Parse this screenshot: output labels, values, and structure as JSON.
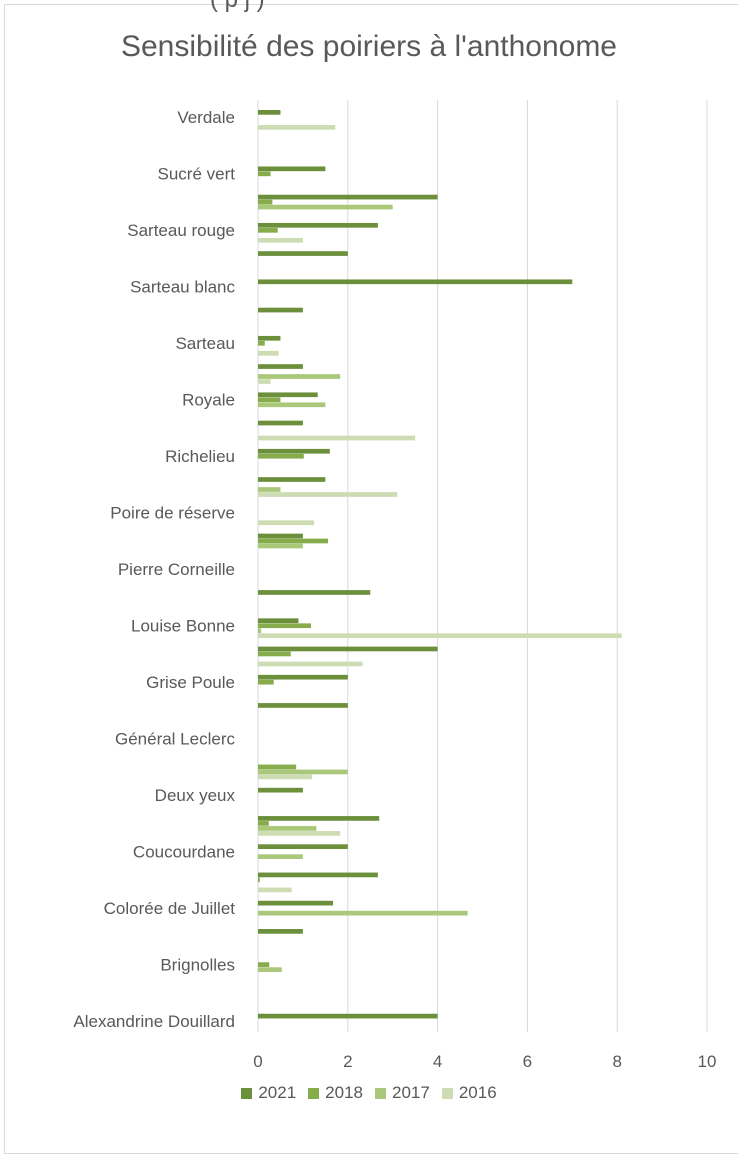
{
  "chart_data": {
    "type": "bar",
    "orientation": "horizontal",
    "title": "Sensibilité des poiriers à l'anthonome",
    "xlabel": "",
    "ylabel": "",
    "xlim": [
      0,
      10
    ],
    "x_ticks": [
      "0",
      "2",
      "4",
      "6",
      "8",
      "10"
    ],
    "grid": true,
    "legend_position": "bottom",
    "visible_category_labels": [
      "Verdale",
      "Sucré vert",
      "Sarteau rouge",
      "Sarteau blanc",
      "Sarteau",
      "Royale",
      "Richelieu",
      "Poire de réserve",
      "Pierre  Corneille",
      "Louise Bonne",
      "Grise Poule",
      "Général Leclerc",
      "Deux yeux",
      "Coucourdane",
      "Colorée de Juillet",
      "Brignolles",
      "Alexandrine Douillard"
    ],
    "series_names": [
      "2021",
      "2018",
      "2017",
      "2016"
    ],
    "series_colors": [
      "#6b8f3a",
      "#86ac4c",
      "#a9c87a",
      "#cddcb3"
    ],
    "rows": [
      {
        "label": "Verdale",
        "values": [
          0.5,
          null,
          null,
          1.72
        ]
      },
      {
        "label": "",
        "values": [
          null,
          null,
          null,
          null
        ]
      },
      {
        "label": "Sucré vert",
        "values": [
          1.5,
          0.28,
          null,
          null
        ]
      },
      {
        "label": "",
        "values": [
          4.0,
          0.32,
          3.0,
          null
        ]
      },
      {
        "label": "Sarteau rouge",
        "values": [
          2.67,
          0.44,
          null,
          1.0
        ]
      },
      {
        "label": "",
        "values": [
          2.0,
          null,
          null,
          null
        ]
      },
      {
        "label": "Sarteau blanc",
        "values": [
          7.0,
          null,
          null,
          null
        ]
      },
      {
        "label": "",
        "values": [
          1.0,
          null,
          null,
          null
        ]
      },
      {
        "label": "Sarteau",
        "values": [
          0.5,
          0.15,
          null,
          0.46
        ]
      },
      {
        "label": "",
        "values": [
          1.0,
          null,
          1.83,
          0.28
        ]
      },
      {
        "label": "Royale",
        "values": [
          1.33,
          0.5,
          1.5,
          null
        ]
      },
      {
        "label": "",
        "values": [
          1.0,
          null,
          null,
          3.5
        ]
      },
      {
        "label": "Richelieu",
        "values": [
          1.6,
          1.02,
          null,
          null
        ]
      },
      {
        "label": "",
        "values": [
          1.5,
          null,
          0.5,
          3.1
        ]
      },
      {
        "label": "Poire de réserve",
        "values": [
          null,
          null,
          null,
          1.25
        ]
      },
      {
        "label": "",
        "values": [
          1.0,
          1.56,
          1.0,
          null
        ]
      },
      {
        "label": "Pierre  Corneille",
        "values": [
          null,
          null,
          null,
          null
        ]
      },
      {
        "label": "",
        "values": [
          2.5,
          null,
          null,
          null
        ]
      },
      {
        "label": "Louise Bonne",
        "values": [
          0.9,
          1.18,
          0.07,
          8.1
        ]
      },
      {
        "label": "",
        "values": [
          4.0,
          0.73,
          null,
          2.33
        ]
      },
      {
        "label": "Grise Poule",
        "values": [
          2.0,
          0.35,
          null,
          null
        ]
      },
      {
        "label": "",
        "values": [
          2.0,
          null,
          null,
          null
        ]
      },
      {
        "label": "Général Leclerc",
        "values": [
          null,
          null,
          null,
          null
        ]
      },
      {
        "label": "",
        "values": [
          null,
          0.85,
          2.0,
          1.2
        ]
      },
      {
        "label": "Deux yeux",
        "values": [
          1.0,
          null,
          null,
          null
        ]
      },
      {
        "label": "",
        "values": [
          2.7,
          0.24,
          1.3,
          1.83
        ]
      },
      {
        "label": "Coucourdane",
        "values": [
          2.0,
          null,
          1.0,
          null
        ]
      },
      {
        "label": "",
        "values": [
          2.67,
          0.04,
          null,
          0.75
        ]
      },
      {
        "label": "Colorée de Juillet",
        "values": [
          1.67,
          null,
          4.67,
          null
        ]
      },
      {
        "label": "",
        "values": [
          1.0,
          null,
          null,
          null
        ]
      },
      {
        "label": "Brignolles",
        "values": [
          null,
          0.25,
          0.53,
          null
        ]
      },
      {
        "label": "",
        "values": [
          null,
          null,
          null,
          null
        ]
      },
      {
        "label": "Alexandrine Douillard",
        "values": [
          4.0,
          null,
          null,
          null
        ]
      }
    ]
  },
  "top_cut_text": "(                    p j )"
}
